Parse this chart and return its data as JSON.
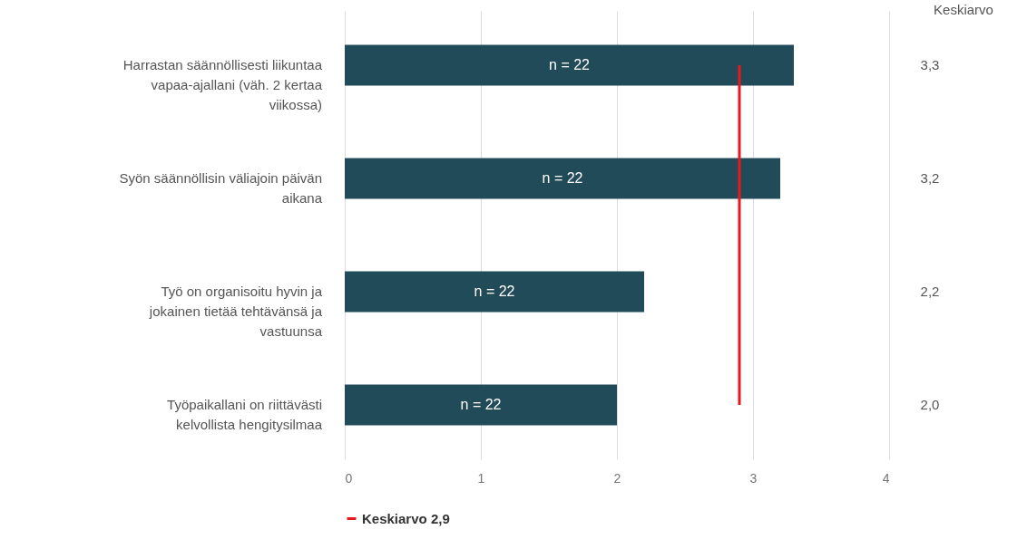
{
  "chart_data": {
    "type": "bar",
    "orientation": "horizontal",
    "categories": [
      "Harrastan säännöllisesti liikuntaa vapaa-ajallani (väh. 2 kertaa viikossa)",
      "Syön säännöllisin väliajoin päivän aikana",
      "Työ on organisoitu hyvin ja jokainen tietää tehtävänsä ja vastuunsa",
      "Työpaikallani on riittävästi kelvollista hengitysilmaa"
    ],
    "values": [
      3.3,
      3.2,
      2.2,
      2.0
    ],
    "color": "#224b59",
    "value_labels": [
      "3,3",
      "3,2",
      "2,2",
      "2,0"
    ],
    "xlim": [
      0,
      4
    ],
    "xticks": [
      0,
      1,
      2,
      3,
      4
    ],
    "grid": "x",
    "ref_lines": [
      {
        "axis": "x",
        "value": 2.9,
        "label": "Keskiarvo 2,9",
        "color": "#e8191c"
      }
    ],
    "legend": "bottom",
    "annotations": [
      "Keskiarvo",
      "n = 22",
      "n = 22",
      "n = 22",
      "n = 22"
    ]
  }
}
